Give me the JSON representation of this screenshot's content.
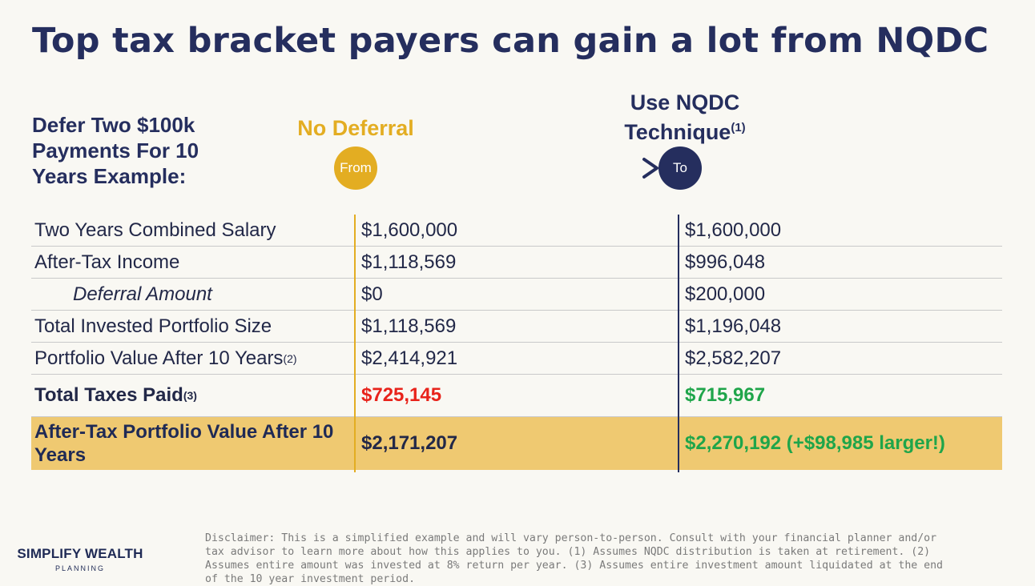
{
  "title": "Top tax bracket payers can gain a lot from NQDC",
  "example_label": "Defer Two $100k Payments For 10 Years Example:",
  "columns": {
    "a": {
      "label": "No Deferral",
      "circle": "From",
      "color": "#e3ad22"
    },
    "b": {
      "label_line1": "Use NQDC",
      "label_line2": "Technique",
      "label_sup": "(1)",
      "circle": "To",
      "color": "#252e5e"
    }
  },
  "rows": [
    {
      "label": "Two Years Combined Salary",
      "sup": "",
      "a": "$1,600,000",
      "b": "$1,600,000"
    },
    {
      "label": "After-Tax Income",
      "sup": "",
      "a": "$1,118,569",
      "b": "$996,048"
    },
    {
      "label": "Deferral Amount",
      "sup": "",
      "a": "$0",
      "b": "$200,000"
    },
    {
      "label": "Total Invested Portfolio Size",
      "sup": "",
      "a": "$1,118,569",
      "b": "$1,196,048"
    },
    {
      "label": "Portfolio Value After 10 Years",
      "sup": "(2)",
      "a": "$2,414,921",
      "b": "$2,582,207"
    },
    {
      "label": "Total Taxes Paid",
      "sup": "(3)",
      "a": "$725,145",
      "b": "$715,967"
    },
    {
      "label": "After-Tax Portfolio Value After 10 Years",
      "sup": "",
      "a": "$2,171,207",
      "b": "$2,270,192 (+$98,985 larger!)"
    }
  ],
  "colors": {
    "highlight": "#efc971",
    "negative": "#e8231b",
    "positive": "#1fa54a",
    "navy": "#252e5e",
    "gold": "#e3ad22"
  },
  "logo": {
    "line1": "SIMPLIFY WEALTH",
    "line2": "PLANNING"
  },
  "disclaimer": "Disclaimer: This is a simplified example and will vary person-to-person. Consult with your financial planner and/or tax advisor to learn more about how this applies to you. (1) Assumes NQDC distribution is taken at retirement. (2) Assumes entire amount was invested at 8% return per year. (3) Assumes entire investment amount liquidated at the end of the 10 year investment period."
}
